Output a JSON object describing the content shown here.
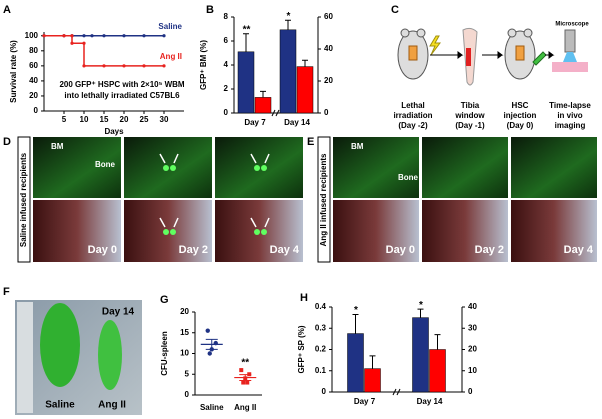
{
  "panel_letters": [
    "A",
    "B",
    "C",
    "D",
    "E",
    "F",
    "G",
    "H"
  ],
  "chart_data": [
    {
      "type": "line",
      "ylabel": "Survival rate (%)",
      "xlabel": "Days",
      "xlim": [
        0,
        35
      ],
      "ylim": [
        0,
        105
      ],
      "xticks": [
        5,
        10,
        15,
        20,
        25,
        30
      ],
      "yticks": [
        0,
        20,
        40,
        60,
        80,
        100
      ],
      "annotation": [
        "200 GFP⁺ HSPC with 2×10⁵  WBM",
        "into lethally irradiated C57BL6"
      ],
      "series": [
        {
          "name": "Saline",
          "color": "#1f3284",
          "x": [
            0,
            5,
            7,
            10,
            12,
            15,
            20,
            25,
            30
          ],
          "values": [
            100,
            100,
            100,
            100,
            100,
            100,
            100,
            100,
            100
          ]
        },
        {
          "name": "Ang II",
          "color": "#e8231f",
          "x": [
            0,
            5,
            7,
            7,
            10,
            10,
            15,
            20,
            25,
            30
          ],
          "values": [
            100,
            100,
            100,
            90,
            90,
            60,
            60,
            60,
            60,
            60
          ]
        }
      ]
    },
    {
      "type": "bar",
      "ylabel": "GFP⁺ BM (%)",
      "categories": [
        "Day 7",
        "Day 14"
      ],
      "ylim": [
        0,
        8
      ],
      "yticks": [
        0,
        2,
        4,
        6,
        8
      ],
      "y2lim": [
        0,
        60
      ],
      "y2ticks": [
        0,
        20,
        40,
        60
      ],
      "significance": [
        "**",
        "*"
      ],
      "series": [
        {
          "color": "#1f3284",
          "values": [
            5.1,
            null
          ],
          "errors": [
            1.5,
            null
          ]
        },
        {
          "color": "#ff0000",
          "values": [
            1.3,
            null
          ],
          "errors": [
            0.5,
            null
          ]
        },
        {
          "color": "#1f3284",
          "axis": "y2",
          "values": [
            null,
            52
          ],
          "errors": [
            null,
            6
          ]
        },
        {
          "color": "#ff0000",
          "axis": "y2",
          "values": [
            null,
            29
          ],
          "errors": [
            null,
            4
          ]
        }
      ]
    },
    {
      "type": "dot",
      "ylabel": "CFU-spleen",
      "categories": [
        "Saline",
        "Ang II"
      ],
      "ylim": [
        0,
        20
      ],
      "yticks": [
        0,
        5,
        10,
        15,
        20
      ],
      "colors": [
        "#1f3284",
        "#e8231f"
      ],
      "points": [
        [
          15.5,
          12.5,
          11,
          10
        ],
        [
          6,
          5,
          4,
          3,
          3
        ]
      ],
      "means": [
        12.2,
        4.2
      ],
      "errors": [
        1.2,
        0.7
      ],
      "significance": [
        null,
        "**"
      ]
    },
    {
      "type": "bar",
      "ylabel": "GFP⁺ SP (%)",
      "categories": [
        "Day 7",
        "Day 14"
      ],
      "ylim": [
        0,
        0.4
      ],
      "yticks": [
        0,
        0.1,
        0.2,
        0.3,
        0.4
      ],
      "y2lim": [
        0,
        40
      ],
      "y2ticks": [
        0,
        10,
        20,
        30,
        40
      ],
      "significance": [
        "*",
        "*"
      ],
      "series": [
        {
          "color": "#1f3284",
          "values": [
            0.275,
            null
          ],
          "errors": [
            0.09,
            null
          ]
        },
        {
          "color": "#ff0000",
          "values": [
            0.11,
            null
          ],
          "errors": [
            0.06,
            null
          ]
        },
        {
          "color": "#1f3284",
          "axis": "y2",
          "values": [
            null,
            35
          ],
          "errors": [
            null,
            4
          ]
        },
        {
          "color": "#ff0000",
          "axis": "y2",
          "values": [
            null,
            20
          ],
          "errors": [
            null,
            7
          ]
        }
      ]
    }
  ],
  "diagram": {
    "steps": [
      [
        "Lethal",
        "irradiation",
        "(Day -2)"
      ],
      [
        "Tibia",
        "window",
        "(Day -1)"
      ],
      [
        "HSC",
        "injection",
        "(Day 0)"
      ],
      [
        "Time-lapse",
        "in vivo",
        "imaging"
      ]
    ],
    "microscope": "Microscope"
  },
  "panel_d": {
    "side_label": "Saline infused recipients",
    "bm": "BM",
    "bone": "Bone",
    "days": [
      "Day 0",
      "Day 2",
      "Day 4"
    ]
  },
  "panel_e": {
    "side_label": "Ang II infused recipients",
    "bm": "BM",
    "bone": "Bone",
    "days": [
      "Day 0",
      "Day 2",
      "Day 4"
    ]
  },
  "panel_f": {
    "day": "Day 14",
    "labels": [
      "Saline",
      "Ang II"
    ]
  }
}
